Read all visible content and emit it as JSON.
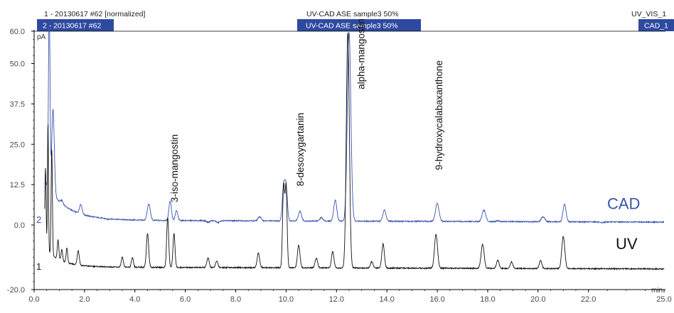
{
  "chart_data": {
    "type": "line",
    "xlabel": "min",
    "ylabel": "pA",
    "xlim": [
      0.0,
      25.0
    ],
    "ylim": [
      -20.0,
      60.0
    ],
    "x_ticks": [
      "0.0",
      "2.0",
      "4.0",
      "6.0",
      "8.0",
      "10.0",
      "12.0",
      "14.0",
      "16.0",
      "18.0",
      "20.0",
      "22.0",
      "25.0"
    ],
    "y_ticks": [
      "60.0",
      "50.0",
      "37.5",
      "25.0",
      "12.5",
      "0.0",
      "-20.0"
    ],
    "header": {
      "left_top": "1 - 20130617 #62 [normalized]",
      "left_box": "2 - 20130617 #62",
      "center_top": "UV-CAD ASE sample3 50%",
      "center_box": "UV-CAD ASE sample3 50%",
      "right_top": "UV_VIS_1",
      "right_box": "CAD_1"
    },
    "annotations": [
      {
        "text": "3-iso-mangostin",
        "x": 5.7
      },
      {
        "text": "8-desoxygartanin",
        "x": 10.7
      },
      {
        "text": "alpha-mangostin",
        "x": 13.1
      },
      {
        "text": "9-hydroxycalabaxanthone",
        "x": 16.2
      }
    ],
    "series": [
      {
        "name": "CAD",
        "number": "2",
        "color": "#3a55b0",
        "baseline": 1.5,
        "decay": {
          "amplitude": 12,
          "tau": 0.8
        },
        "peaks": [
          {
            "x": 0.6,
            "y": 60.0,
            "w": 0.03
          },
          {
            "x": 0.75,
            "y": 28.0,
            "w": 0.05
          },
          {
            "x": 1.1,
            "y": 2.5,
            "w": 0.05
          },
          {
            "x": 1.85,
            "y": 4.5,
            "w": 0.05
          },
          {
            "x": 2.9,
            "y": 1.3,
            "w": 0.06
          },
          {
            "x": 3.6,
            "y": 1.5,
            "w": 0.06
          },
          {
            "x": 4.55,
            "y": 6.5,
            "w": 0.06
          },
          {
            "x": 5.4,
            "y": 7.5,
            "w": 0.05
          },
          {
            "x": 5.65,
            "y": 4.5,
            "w": 0.05
          },
          {
            "x": 6.9,
            "y": 1.0,
            "w": 0.06
          },
          {
            "x": 7.3,
            "y": 0.9,
            "w": 0.06
          },
          {
            "x": 8.95,
            "y": 2.8,
            "w": 0.06
          },
          {
            "x": 9.9,
            "y": 12.0,
            "w": 0.05
          },
          {
            "x": 10.0,
            "y": 12.0,
            "w": 0.05
          },
          {
            "x": 10.55,
            "y": 4.5,
            "w": 0.06
          },
          {
            "x": 11.4,
            "y": 2.5,
            "w": 0.06
          },
          {
            "x": 11.95,
            "y": 8.0,
            "w": 0.06
          },
          {
            "x": 12.5,
            "y": 60.0,
            "w": 0.07
          },
          {
            "x": 13.5,
            "y": 1.5,
            "w": 0.06
          },
          {
            "x": 13.9,
            "y": 5.0,
            "w": 0.06
          },
          {
            "x": 16.0,
            "y": 7.0,
            "w": 0.07
          },
          {
            "x": 17.85,
            "y": 5.0,
            "w": 0.07
          },
          {
            "x": 18.4,
            "y": 1.8,
            "w": 0.06
          },
          {
            "x": 20.2,
            "y": 3.0,
            "w": 0.07
          },
          {
            "x": 21.05,
            "y": 7.0,
            "w": 0.06
          },
          {
            "x": 22.5,
            "y": 1.2,
            "w": 0.08
          }
        ]
      },
      {
        "name": "UV",
        "number": "1",
        "color": "#111111",
        "baseline": -13.0,
        "decay": {
          "amplitude": 6,
          "tau": 0.6
        },
        "peaks": [
          {
            "x": 0.45,
            "y": 12.0,
            "w": 0.025
          },
          {
            "x": 0.55,
            "y": 27.0,
            "w": 0.02
          },
          {
            "x": 0.7,
            "y": 20.0,
            "w": 0.025
          },
          {
            "x": 0.95,
            "y": -7.0,
            "w": 0.03
          },
          {
            "x": 1.1,
            "y": -9.5,
            "w": 0.03
          },
          {
            "x": 1.3,
            "y": -8.5,
            "w": 0.03
          },
          {
            "x": 1.75,
            "y": -8.5,
            "w": 0.04
          },
          {
            "x": 3.5,
            "y": -10.0,
            "w": 0.04
          },
          {
            "x": 3.9,
            "y": -10.0,
            "w": 0.04
          },
          {
            "x": 4.5,
            "y": -2.5,
            "w": 0.045
          },
          {
            "x": 5.3,
            "y": 2.5,
            "w": 0.04
          },
          {
            "x": 5.55,
            "y": -2.5,
            "w": 0.04
          },
          {
            "x": 6.9,
            "y": -10.0,
            "w": 0.045
          },
          {
            "x": 7.25,
            "y": -11.0,
            "w": 0.045
          },
          {
            "x": 8.9,
            "y": -8.5,
            "w": 0.05
          },
          {
            "x": 9.9,
            "y": 12.0,
            "w": 0.04
          },
          {
            "x": 10.0,
            "y": 12.0,
            "w": 0.04
          },
          {
            "x": 10.5,
            "y": -6.0,
            "w": 0.05
          },
          {
            "x": 11.2,
            "y": -10.0,
            "w": 0.05
          },
          {
            "x": 11.85,
            "y": -8.0,
            "w": 0.05
          },
          {
            "x": 12.45,
            "y": 60.0,
            "w": 0.06
          },
          {
            "x": 13.4,
            "y": -11.0,
            "w": 0.05
          },
          {
            "x": 13.85,
            "y": -5.5,
            "w": 0.05
          },
          {
            "x": 15.95,
            "y": -2.5,
            "w": 0.06
          },
          {
            "x": 17.8,
            "y": -5.5,
            "w": 0.06
          },
          {
            "x": 18.4,
            "y": -10.5,
            "w": 0.05
          },
          {
            "x": 18.95,
            "y": -11.0,
            "w": 0.05
          },
          {
            "x": 20.1,
            "y": -10.5,
            "w": 0.05
          },
          {
            "x": 21.0,
            "y": -3.0,
            "w": 0.06
          }
        ]
      }
    ],
    "series_tags": [
      "CAD",
      "UV"
    ],
    "colors": {
      "header_box": "#2e4aa0",
      "cad": "#3a55b0",
      "uv": "#111111",
      "axis": "#000000"
    }
  }
}
